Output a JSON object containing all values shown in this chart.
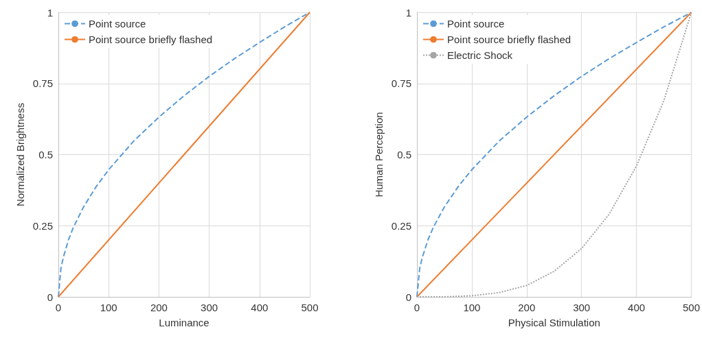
{
  "chart_data": [
    {
      "type": "line",
      "xlabel": "Luminance",
      "ylabel": "Normalized Brightness",
      "xlim": [
        0,
        500
      ],
      "xticks": [
        0,
        100,
        200,
        300,
        400,
        500
      ],
      "ylim": [
        0,
        1
      ],
      "yticks": [
        0,
        0.25,
        0.5,
        0.75,
        1
      ],
      "grid": true,
      "legend": "top left",
      "marker": "none",
      "series": [
        {
          "name": "Point source",
          "color": "#5b9bd5",
          "line_style": "dashed",
          "x": [
            0,
            5,
            10,
            20,
            30,
            50,
            75,
            100,
            150,
            200,
            250,
            300,
            350,
            400,
            450,
            500
          ],
          "values": [
            0,
            0.1,
            0.14,
            0.2,
            0.245,
            0.316,
            0.387,
            0.447,
            0.548,
            0.632,
            0.707,
            0.775,
            0.837,
            0.894,
            0.949,
            1
          ]
        },
        {
          "name": "Point source briefly flashed",
          "color": "#ed7d31",
          "line_style": "solid",
          "x": [
            0,
            500
          ],
          "values": [
            0,
            1
          ]
        }
      ]
    },
    {
      "type": "line",
      "xlabel": "Physical Stimulation",
      "ylabel": "Human Perception",
      "xlim": [
        0,
        500
      ],
      "xticks": [
        0,
        100,
        200,
        300,
        400,
        500
      ],
      "ylim": [
        0,
        1
      ],
      "yticks": [
        0,
        0.25,
        0.5,
        0.75,
        1
      ],
      "grid": true,
      "legend": "top left",
      "marker": "none",
      "series": [
        {
          "name": "Point source",
          "color": "#5b9bd5",
          "line_style": "dashed",
          "x": [
            0,
            5,
            10,
            20,
            30,
            50,
            75,
            100,
            150,
            200,
            250,
            300,
            350,
            400,
            450,
            500
          ],
          "values": [
            0,
            0.1,
            0.14,
            0.2,
            0.245,
            0.316,
            0.387,
            0.447,
            0.548,
            0.632,
            0.707,
            0.775,
            0.837,
            0.894,
            0.949,
            1
          ]
        },
        {
          "name": "Point source briefly flashed",
          "color": "#ed7d31",
          "line_style": "solid",
          "x": [
            0,
            500
          ],
          "values": [
            0,
            1
          ]
        },
        {
          "name": "Electric Shock",
          "color": "#a5a5a5",
          "line_style": "dotted",
          "x": [
            0,
            50,
            100,
            150,
            200,
            250,
            300,
            350,
            400,
            450,
            500
          ],
          "values": [
            0,
            0,
            0.004,
            0.015,
            0.04,
            0.09,
            0.17,
            0.29,
            0.46,
            0.69,
            1
          ]
        }
      ]
    }
  ]
}
